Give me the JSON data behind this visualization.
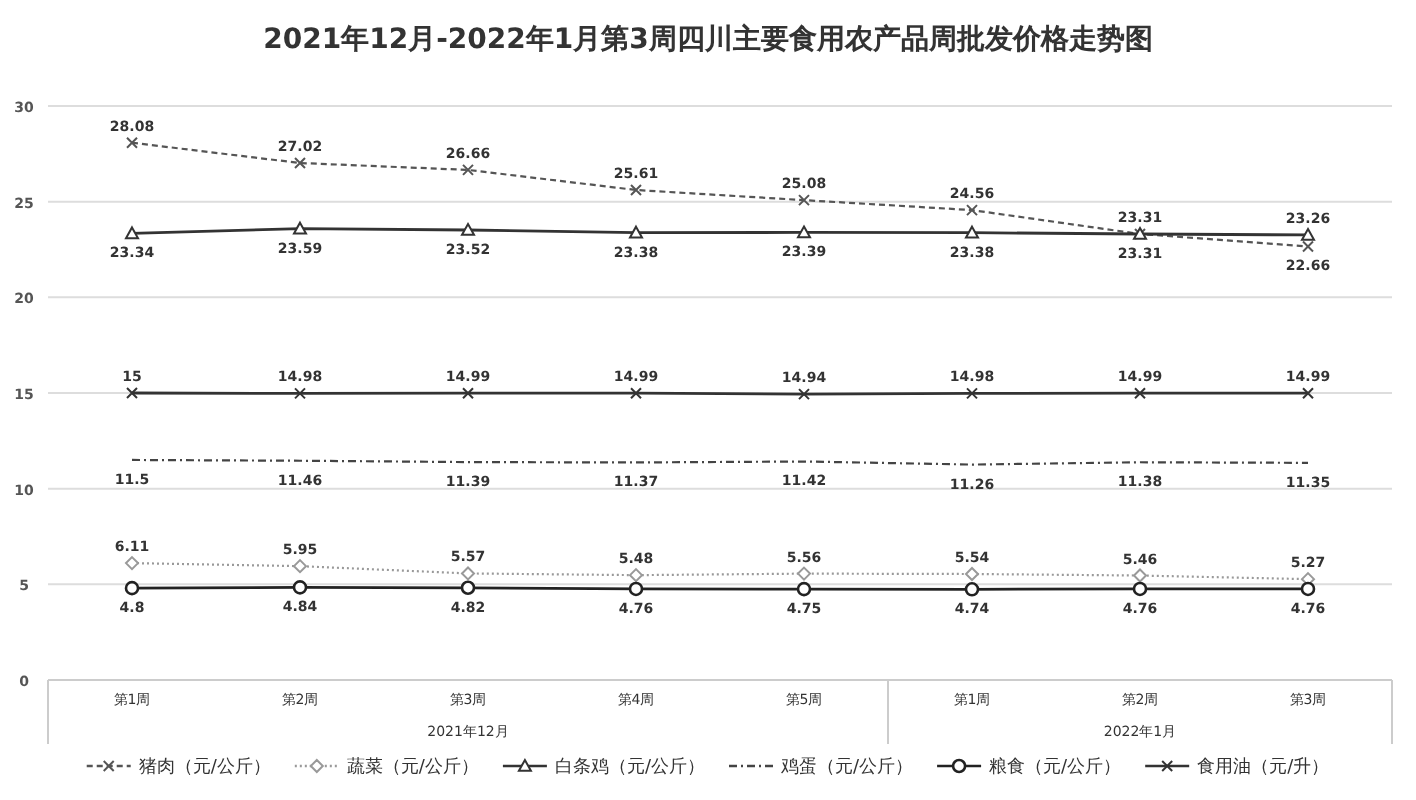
{
  "chart_data": {
    "type": "line",
    "title": "2021年12月-2022年1月第3周四川主要食用农产品周批发价格走势图",
    "categories": [
      "第1周",
      "第2周",
      "第3周",
      "第4周",
      "第5周",
      "第1周",
      "第2周",
      "第3周"
    ],
    "annotations": [
      "2021年12月",
      "2022年1月"
    ],
    "series": [
      {
        "name": "猪肉（元/公斤）",
        "color": "#555555",
        "marker": "cross",
        "line_style": "dashed",
        "values": [
          28.08,
          27.02,
          26.66,
          25.61,
          25.08,
          24.56,
          23.31,
          22.66
        ]
      },
      {
        "name": "蔬菜（元/公斤）",
        "color": "#999999",
        "marker": "diamond",
        "line_style": "dotted",
        "values": [
          6.11,
          5.95,
          5.57,
          5.48,
          5.56,
          5.54,
          5.46,
          5.27
        ]
      },
      {
        "name": "白条鸡（元/公斤）",
        "color": "#333333",
        "marker": "triangle",
        "line_style": "solid",
        "values": [
          23.34,
          23.59,
          23.52,
          23.38,
          23.39,
          23.38,
          23.31,
          23.26
        ]
      },
      {
        "name": "鸡蛋（元/公斤）",
        "color": "#444444",
        "marker": "none",
        "line_style": "dashdot",
        "values": [
          11.5,
          11.46,
          11.39,
          11.37,
          11.42,
          11.26,
          11.38,
          11.35
        ]
      },
      {
        "name": "粮食（元/公斤）",
        "color": "#222222",
        "marker": "circle",
        "line_style": "solid",
        "values": [
          4.8,
          4.84,
          4.82,
          4.76,
          4.75,
          4.74,
          4.76,
          4.76
        ]
      },
      {
        "name": "食用油（元/升）",
        "color": "#333333",
        "marker": "cross",
        "line_style": "solid",
        "values": [
          15,
          14.98,
          14.99,
          14.99,
          14.94,
          14.98,
          14.99,
          14.99
        ]
      }
    ],
    "ylim": [
      0,
      30
    ],
    "yticks": [
      0,
      5,
      10,
      15,
      20,
      25,
      30
    ],
    "grid": "y",
    "legend": "bottom",
    "data_labels": true
  }
}
